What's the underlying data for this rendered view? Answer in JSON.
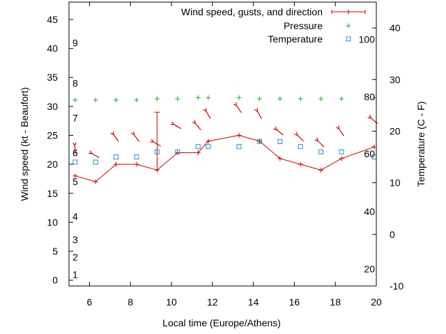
{
  "chart_data": {
    "type": "line",
    "xlabel": "Local time (Europe/Athens)",
    "ylabel": "Wind speed (kt - Beaufort)",
    "y2label": "Temperature (C - F)",
    "xlim": [
      5,
      20
    ],
    "ylim": [
      -1,
      48
    ],
    "y2lim": [
      -10,
      45
    ],
    "x_ticks": [
      6,
      8,
      10,
      12,
      14,
      16,
      18,
      20
    ],
    "y_ticks": [
      0,
      5,
      10,
      15,
      20,
      25,
      30,
      35,
      40,
      45
    ],
    "y2_ticks": [
      -10,
      0,
      10,
      20,
      30,
      40
    ],
    "beaufort_labels": [
      {
        "label": "1",
        "kt": 1
      },
      {
        "label": "2",
        "kt": 4
      },
      {
        "label": "3",
        "kt": 7
      },
      {
        "label": "4",
        "kt": 11
      },
      {
        "label": "5",
        "kt": 17
      },
      {
        "label": "6",
        "kt": 22
      },
      {
        "label": "7",
        "kt": 28
      },
      {
        "label": "8",
        "kt": 34
      },
      {
        "label": "9",
        "kt": 41
      }
    ],
    "fahrenheit_labels": [
      {
        "label": "20",
        "c": -6.7
      },
      {
        "label": "40",
        "c": 4.4
      },
      {
        "label": "60",
        "c": 15.6
      },
      {
        "label": "80",
        "c": 26.7
      },
      {
        "label": "100",
        "c": 37.8
      }
    ],
    "grid": false,
    "legend_position": "top-right",
    "colors": {
      "wind": "#cc0000",
      "direction": "#cc0000",
      "pressure": "#22aa22",
      "temperature": "#1e90c8"
    },
    "series": [
      {
        "name": "Wind speed, gusts, and direction",
        "x": [
          5.3,
          6.3,
          7.3,
          8.3,
          9.3,
          10.3,
          11.3,
          11.8,
          13.3,
          14.3,
          15.3,
          16.3,
          17.3,
          18.3,
          19.9
        ],
        "values": [
          18,
          17,
          20,
          20,
          19,
          22,
          22,
          24,
          25,
          24,
          21,
          20,
          19,
          21,
          23
        ],
        "gusts": [
          null,
          null,
          null,
          null,
          29,
          null,
          null,
          null,
          null,
          null,
          null,
          null,
          null,
          null,
          null
        ],
        "direction_deg": [
          175,
          120,
          145,
          145,
          120,
          120,
          140,
          150,
          145,
          150,
          130,
          135,
          135,
          145,
          130
        ]
      },
      {
        "name": "Pressure",
        "x": [
          5.3,
          6.3,
          7.3,
          8.3,
          9.3,
          10.3,
          11.3,
          11.8,
          13.3,
          14.3,
          15.3,
          16.3,
          17.3,
          18.3,
          19.9
        ],
        "values": [
          31.1,
          31.1,
          31.1,
          31.1,
          31.3,
          31.3,
          31.5,
          31.5,
          31.5,
          31.3,
          31.3,
          31.3,
          31.3,
          31.3,
          31.5
        ]
      },
      {
        "name": "Temperature",
        "x": [
          5.3,
          6.3,
          7.3,
          8.3,
          9.3,
          10.3,
          11.3,
          11.8,
          13.3,
          14.3,
          15.3,
          16.3,
          17.3,
          18.3,
          19.9
        ],
        "values": [
          14,
          14,
          15,
          15,
          16,
          16,
          17,
          17,
          17,
          18,
          18,
          17,
          16,
          16,
          15
        ]
      }
    ]
  }
}
